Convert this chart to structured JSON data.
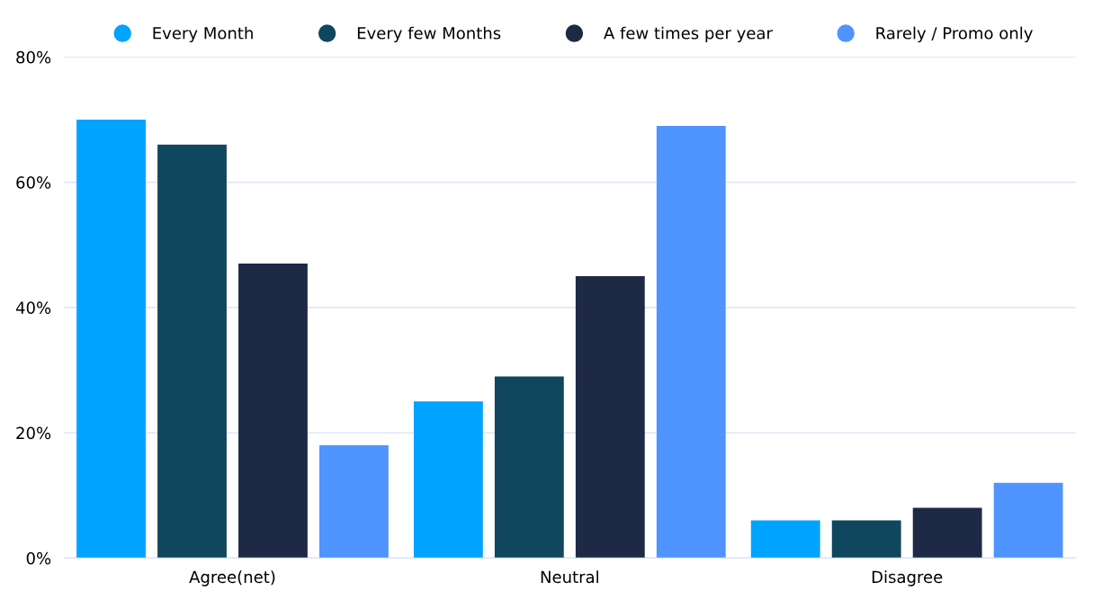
{
  "chart_data": {
    "type": "bar",
    "categories": [
      "Agree(net)",
      "Neutral",
      "Disagree"
    ],
    "series": [
      {
        "name": "Every Month",
        "color": "#00a3ff",
        "values": [
          70,
          25,
          6
        ]
      },
      {
        "name": "Every few Months",
        "color": "#10475e",
        "values": [
          66,
          29,
          6
        ]
      },
      {
        "name": "A few times per year",
        "color": "#1e2a45",
        "values": [
          47,
          45,
          8
        ]
      },
      {
        "name": "Rarely / Promo only",
        "color": "#4f94ff",
        "values": [
          18,
          69,
          12
        ]
      }
    ],
    "ylim": [
      0,
      80
    ],
    "yticks": [
      {
        "value": 0,
        "label": "0%"
      },
      {
        "value": 20,
        "label": "20%"
      },
      {
        "value": 40,
        "label": "40%"
      },
      {
        "value": 60,
        "label": "60%"
      },
      {
        "value": 80,
        "label": "80%"
      }
    ],
    "grid": "y",
    "legend": "top"
  }
}
